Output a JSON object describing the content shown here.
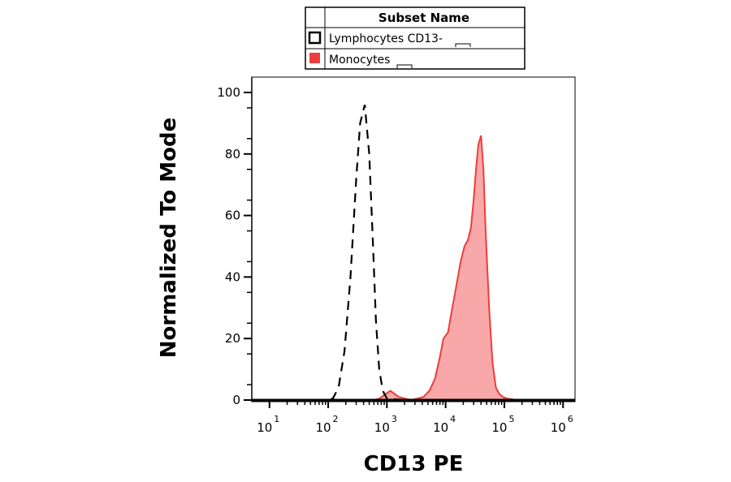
{
  "legend": {
    "title": "Subset Name",
    "items": [
      {
        "label": "Lymphocytes CD13-",
        "style": "dashed-outline",
        "color": "#000000"
      },
      {
        "label": "Monocytes",
        "style": "filled",
        "color": "#f03c3c"
      }
    ]
  },
  "chart_data": {
    "type": "area",
    "xlabel": "CD13 PE",
    "ylabel": "Normalized To Mode",
    "x_scale": "log",
    "xlim": [
      5,
      1600000
    ],
    "ylim": [
      0,
      105
    ],
    "x_ticks": [
      {
        "value": 10,
        "base": "10",
        "exp": "1"
      },
      {
        "value": 100,
        "base": "10",
        "exp": "2"
      },
      {
        "value": 1000,
        "base": "10",
        "exp": "3"
      },
      {
        "value": 10000,
        "base": "10",
        "exp": "4"
      },
      {
        "value": 100000,
        "base": "10",
        "exp": "5"
      },
      {
        "value": 1000000,
        "base": "10",
        "exp": "6"
      }
    ],
    "y_ticks": [
      0,
      20,
      40,
      60,
      80,
      100
    ],
    "grid": false,
    "series": [
      {
        "name": "Lymphocytes CD13-",
        "style": "dashed",
        "color": "#000000",
        "x": [
          10,
          100,
          120,
          150,
          190,
          240,
          300,
          350,
          420,
          500,
          580,
          650,
          740,
          850,
          1000,
          2000,
          10000,
          100000,
          1000000
        ],
        "y": [
          0,
          0,
          0.5,
          4,
          16,
          40,
          72,
          90,
          96,
          80,
          50,
          26,
          10,
          3,
          0.5,
          0,
          0,
          0,
          0
        ]
      },
      {
        "name": "Monocytes",
        "style": "filled",
        "color": "#f03c3c",
        "fill": "#f8a8a8",
        "x": [
          10,
          300,
          600,
          750,
          950,
          1150,
          1350,
          1600,
          2000,
          2600,
          3300,
          4200,
          5300,
          6600,
          8000,
          9200,
          11000,
          13000,
          15500,
          18000,
          21000,
          24000,
          27000,
          30000,
          33000,
          36000,
          40000,
          44000,
          48000,
          55000,
          63000,
          72000,
          82000,
          95000,
          110000,
          130000,
          160000,
          200000,
          1000000
        ],
        "y": [
          0,
          0,
          0,
          0.5,
          2,
          3,
          2,
          1,
          0.5,
          0,
          0.5,
          1,
          3,
          7,
          14,
          20,
          22,
          30,
          38,
          45,
          50,
          52,
          56,
          65,
          75,
          83,
          86,
          75,
          55,
          30,
          12,
          4,
          2,
          1,
          0.5,
          0.3,
          0,
          0,
          0
        ]
      }
    ]
  }
}
